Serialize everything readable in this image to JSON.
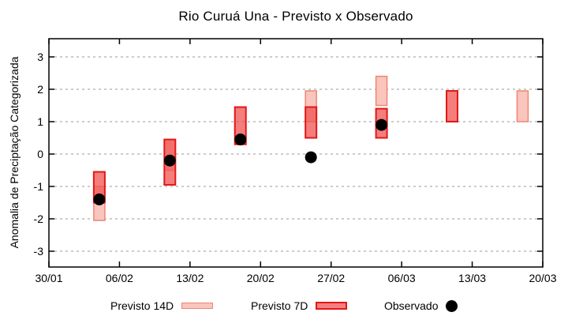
{
  "header": {
    "title": "Rio Curuá Una - Previsto x Observado"
  },
  "chart_data": {
    "type": "bar",
    "subtype": "floating-range-boxes-with-points",
    "title": "Rio Curuá Una - Previsto x Observado",
    "xlabel": "",
    "ylabel": "Anomalia de Preciptação Categorizada",
    "ylim": [
      -3.5,
      3.5
    ],
    "grid": "horizontal-dashed-gray",
    "legend_position": "bottom-center",
    "colors": {
      "grid": "#9a9a9a",
      "axis": "#000000",
      "background": "#ffffff"
    },
    "x_axis": {
      "type": "date",
      "tick_labels": [
        "30/01",
        "06/02",
        "13/02",
        "20/02",
        "27/02",
        "06/03",
        "13/03",
        "20/03"
      ],
      "tick_day_offsets": [
        0,
        7,
        14,
        21,
        28,
        35,
        42,
        49
      ],
      "range_day_offsets": [
        0,
        49
      ]
    },
    "y_ticks": [
      3,
      2,
      1,
      0,
      -1,
      -2,
      -3
    ],
    "series": [
      {
        "name": "Previsto 14D",
        "kind": "range-box",
        "fill": "#f9c5bd",
        "fill_opacity": 1,
        "border": "#ee8672",
        "points": [
          {
            "date": "04/02",
            "day_offset": 5,
            "low": -2.05,
            "high": -1.0
          },
          {
            "date": "11/02",
            "day_offset": 12,
            "low": -0.5,
            "high": 0.45
          },
          {
            "date": "25/02",
            "day_offset": 26,
            "low": 1.0,
            "high": 1.95
          },
          {
            "date": "04/03",
            "day_offset": 33,
            "low": 1.5,
            "high": 2.4
          },
          {
            "date": "18/03",
            "day_offset": 47,
            "low": 1.0,
            "high": 1.95
          }
        ]
      },
      {
        "name": "Previsto 7D",
        "kind": "range-box",
        "fill": "#ef5350",
        "fill_opacity": 0.75,
        "border": "#e21717",
        "points": [
          {
            "date": "04/02",
            "day_offset": 5,
            "low": -1.5,
            "high": -0.55
          },
          {
            "date": "11/02",
            "day_offset": 12,
            "low": -0.95,
            "high": 0.45
          },
          {
            "date": "18/02",
            "day_offset": 19,
            "low": 0.3,
            "high": 1.45
          },
          {
            "date": "25/02",
            "day_offset": 26,
            "low": 0.5,
            "high": 1.45
          },
          {
            "date": "04/03",
            "day_offset": 33,
            "low": 0.5,
            "high": 1.4
          },
          {
            "date": "11/03",
            "day_offset": 40,
            "low": 1.0,
            "high": 1.95
          }
        ]
      },
      {
        "name": "Observado",
        "kind": "point",
        "color": "#000000",
        "points": [
          {
            "date": "04/02",
            "day_offset": 5,
            "value": -1.4
          },
          {
            "date": "11/02",
            "day_offset": 12,
            "value": -0.2
          },
          {
            "date": "18/02",
            "day_offset": 19,
            "value": 0.45
          },
          {
            "date": "25/02",
            "day_offset": 26,
            "value": -0.1
          },
          {
            "date": "04/03",
            "day_offset": 33,
            "value": 0.9
          }
        ]
      }
    ]
  }
}
